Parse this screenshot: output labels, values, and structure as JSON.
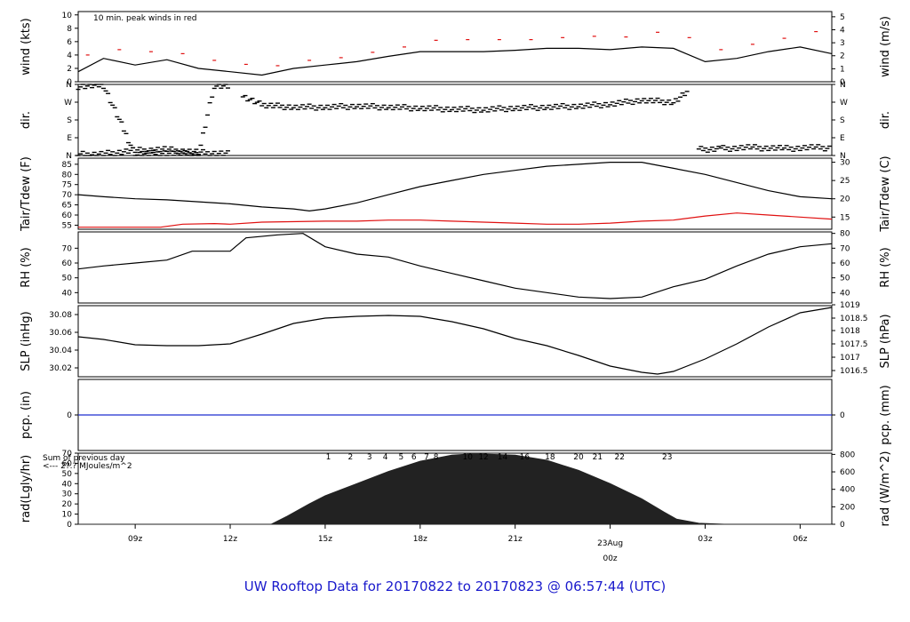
{
  "footer_title": "UW Rooftop Data for 20170822  to  20170823 @ 06:57:44  (UTC)",
  "colors": {
    "line": "#000000",
    "secondary": "#e01010",
    "precip": "#1f2fd0",
    "annotation": "#a020c0",
    "footer": "#1a1acc",
    "date": "#e01010"
  },
  "x_axis": {
    "ticks": [
      {
        "hour": 9,
        "label": "09z"
      },
      {
        "hour": 12,
        "label": "12z"
      },
      {
        "hour": 15,
        "label": "15z"
      },
      {
        "hour": 18,
        "label": "18z"
      },
      {
        "hour": 21,
        "label": "21z"
      },
      {
        "hour": 27,
        "label": "03z"
      },
      {
        "hour": 30,
        "label": "06z"
      }
    ],
    "date_marker": {
      "hour": 24,
      "date": "23Aug",
      "time": "00z"
    },
    "range_hours": [
      7.2,
      31
    ]
  },
  "chart_data": [
    {
      "id": "wind",
      "type": "line",
      "ylabel_left": "wind (kts)",
      "ylabel_right": "wind (m/s)",
      "annotation": "10 min. peak winds in red",
      "ylim": [
        0,
        10.5
      ],
      "yticks_left": [
        0,
        2,
        4,
        6,
        8,
        10
      ],
      "yticks_right": [
        0,
        1,
        2,
        3,
        4,
        5
      ],
      "series": [
        {
          "role": "speed",
          "x": [
            7.2,
            8,
            9,
            10,
            11,
            12,
            13,
            14,
            15,
            16,
            17,
            18,
            19,
            20,
            21,
            22,
            23,
            24,
            25,
            26,
            27,
            28,
            29,
            30,
            31
          ],
          "y": [
            1.5,
            3.5,
            2.5,
            3.3,
            2.0,
            1.5,
            1.0,
            2.0,
            2.5,
            3.0,
            3.8,
            4.5,
            4.5,
            4.5,
            4.7,
            5.0,
            5.0,
            4.8,
            5.2,
            5.0,
            3.0,
            3.5,
            4.5,
            5.2,
            4.2
          ]
        },
        {
          "role": "peak",
          "x": [
            7.5,
            8.5,
            9.5,
            10.5,
            11.5,
            12.5,
            13.5,
            14.5,
            15.5,
            16.5,
            17.5,
            18.5,
            19.5,
            20.5,
            21.5,
            22.5,
            23.5,
            24.5,
            25.5,
            26.5,
            27.5,
            28.5,
            29.5,
            30.5
          ],
          "y": [
            4.0,
            4.8,
            4.5,
            4.2,
            3.2,
            2.6,
            2.4,
            3.2,
            3.6,
            4.4,
            5.2,
            6.2,
            6.3,
            6.3,
            6.3,
            6.6,
            6.8,
            6.7,
            7.4,
            6.6,
            4.8,
            5.6,
            6.5,
            7.5
          ]
        }
      ]
    },
    {
      "id": "dir",
      "type": "scatter",
      "ylabel_left": "dir.",
      "ylabel_right": "dir.",
      "ylim": [
        0,
        360
      ],
      "ytick_labels": [
        "N",
        "E",
        "S",
        "W",
        "N"
      ],
      "ytick_values": [
        0,
        90,
        180,
        270,
        360
      ],
      "segments": [
        {
          "x": [
            7.2,
            8,
            9,
            10,
            11,
            11.5,
            12.0
          ],
          "y": [
            350,
            355,
            5,
            15,
            5,
            355,
            350
          ]
        },
        {
          "x": [
            7.2,
            8,
            9,
            10,
            11,
            12.0
          ],
          "y": [
            5,
            8,
            25,
            30,
            15,
            8
          ]
        },
        {
          "x": [
            12.4,
            13,
            14,
            15,
            16,
            17,
            18,
            19,
            20,
            21,
            22,
            23,
            24,
            25,
            26,
            26.5
          ],
          "y": [
            300,
            255,
            245,
            245,
            250,
            245,
            240,
            235,
            232,
            240,
            245,
            250,
            260,
            280,
            270,
            330
          ]
        },
        {
          "x": [
            26.8,
            27.5,
            28.5,
            29.5,
            30.5,
            31
          ],
          "y": [
            30,
            35,
            40,
            35,
            40,
            38
          ]
        }
      ]
    },
    {
      "id": "temp",
      "type": "line",
      "ylabel_left": "Tair/Tdew (F)",
      "ylabel_right": "Tair/Tdew (C)",
      "ylim": [
        53,
        88
      ],
      "yticks_left": [
        55,
        60,
        65,
        70,
        75,
        80,
        85
      ],
      "yticks_right": [
        {
          "label": "15",
          "f": 59
        },
        {
          "label": "20",
          "f": 68
        },
        {
          "label": "25",
          "f": 77
        },
        {
          "label": "30",
          "f": 86
        }
      ],
      "series": [
        {
          "role": "tair",
          "x": [
            7.2,
            8,
            9,
            10,
            11,
            12,
            13,
            14,
            14.5,
            15,
            16,
            17,
            18,
            19,
            20,
            21,
            22,
            23,
            24,
            25,
            26,
            27,
            28,
            29,
            30,
            31
          ],
          "y": [
            70,
            69,
            68,
            67.5,
            66.5,
            65.5,
            64,
            63,
            62,
            63,
            66,
            70,
            74,
            77,
            80,
            82,
            84,
            85,
            86,
            86,
            83,
            80,
            76,
            72,
            69,
            68
          ]
        },
        {
          "role": "tdew",
          "x": [
            7.2,
            9,
            9.8,
            10.5,
            11.5,
            12,
            13,
            15,
            16,
            17,
            18,
            19,
            20,
            21,
            22,
            23,
            24,
            25,
            26,
            27,
            28,
            29,
            30,
            31
          ],
          "y": [
            54,
            54,
            54,
            55.5,
            55.8,
            55.5,
            56.5,
            57,
            57,
            57.5,
            57.5,
            57,
            56.5,
            56,
            55.5,
            55.5,
            56,
            57,
            57.5,
            59.5,
            61,
            60,
            59,
            58
          ]
        }
      ]
    },
    {
      "id": "rh",
      "type": "line",
      "ylabel_left": "RH (%)",
      "ylabel_right": "RH (%)",
      "ylim": [
        33,
        81
      ],
      "yticks_left": [
        40,
        50,
        60,
        70
      ],
      "yticks_right": [
        40,
        50,
        60,
        70,
        80
      ],
      "series": [
        {
          "role": "rh",
          "x": [
            7.2,
            8,
            9,
            10,
            10.8,
            11.5,
            12,
            12.5,
            13.5,
            14.3,
            15,
            16,
            17,
            18,
            19,
            20,
            21,
            22,
            23,
            24,
            25,
            26,
            27,
            28,
            29,
            30,
            31
          ],
          "y": [
            56,
            58,
            60,
            62,
            68,
            68,
            68,
            77,
            79,
            80,
            71,
            66,
            64,
            58,
            53,
            48,
            43,
            40,
            37,
            36,
            37,
            44,
            49,
            58,
            66,
            71,
            73
          ]
        }
      ]
    },
    {
      "id": "slp",
      "type": "line",
      "ylabel_left": "SLP (inHg)",
      "ylabel_right": "SLP (hPa)",
      "ylim": [
        30.01,
        30.09
      ],
      "yticks_left": [
        30.02,
        30.04,
        30.06,
        30.08
      ],
      "yticks_right": [
        {
          "label": "1016.5",
          "in": 30.017
        },
        {
          "label": "1017",
          "in": 30.032
        },
        {
          "label": "1017.5",
          "in": 30.047
        },
        {
          "label": "1018",
          "in": 30.062
        },
        {
          "label": "1018.5",
          "in": 30.076
        },
        {
          "label": "1019",
          "in": 30.091
        }
      ],
      "series": [
        {
          "role": "slp",
          "x": [
            7.2,
            8,
            9,
            10,
            11,
            12,
            13,
            14,
            15,
            16,
            17,
            18,
            19,
            20,
            21,
            22,
            23,
            24,
            25,
            25.5,
            26,
            27,
            28,
            29,
            30,
            31
          ],
          "y": [
            30.055,
            30.052,
            30.046,
            30.045,
            30.045,
            30.047,
            30.058,
            30.07,
            30.076,
            30.078,
            30.079,
            30.078,
            30.072,
            30.064,
            30.053,
            30.045,
            30.034,
            30.022,
            30.015,
            30.013,
            30.016,
            30.03,
            30.047,
            30.066,
            30.082,
            30.088
          ]
        }
      ]
    },
    {
      "id": "pcp",
      "type": "line",
      "ylabel_left": "pcp. (in)",
      "ylabel_right": "pcp. (mm)",
      "ylim": [
        -1,
        1
      ],
      "yticks_left": [
        0
      ],
      "yticks_right": [
        0
      ],
      "series": [
        {
          "role": "pcp",
          "x": [
            7.2,
            31
          ],
          "y": [
            0,
            0
          ]
        }
      ]
    },
    {
      "id": "rad",
      "type": "area",
      "ylabel_left": "rad(Lgly/hr)",
      "ylabel_right": "rad (W/m^2)",
      "annotation_lines": [
        "Sum of previous day",
        "<--- 2?.? MJoules/m^2"
      ],
      "hour_labels": [
        {
          "hour": 15.1,
          "label": "1"
        },
        {
          "hour": 15.8,
          "label": "2"
        },
        {
          "hour": 16.4,
          "label": "3"
        },
        {
          "hour": 16.9,
          "label": "4"
        },
        {
          "hour": 17.4,
          "label": "5"
        },
        {
          "hour": 17.8,
          "label": "6"
        },
        {
          "hour": 18.2,
          "label": "7"
        },
        {
          "hour": 18.5,
          "label": "8"
        },
        {
          "hour": 19.5,
          "label": "10"
        },
        {
          "hour": 20.0,
          "label": "12"
        },
        {
          "hour": 20.6,
          "label": "14"
        },
        {
          "hour": 21.3,
          "label": "16"
        },
        {
          "hour": 22.1,
          "label": "18"
        },
        {
          "hour": 23.0,
          "label": "20"
        },
        {
          "hour": 23.6,
          "label": "21"
        },
        {
          "hour": 24.3,
          "label": "22"
        },
        {
          "hour": 25.8,
          "label": "23"
        }
      ],
      "ylim": [
        0,
        70
      ],
      "yticks_left": [
        0,
        10,
        20,
        30,
        40,
        50,
        60,
        70
      ],
      "yticks_right": [
        {
          "label": "0",
          "w": 0
        },
        {
          "label": "200",
          "w": 200
        },
        {
          "label": "400",
          "w": 400
        },
        {
          "label": "600",
          "w": 600
        },
        {
          "label": "800",
          "w": 800
        }
      ],
      "series": [
        {
          "role": "rad",
          "x": [
            7.2,
            13.3,
            13.8,
            14.5,
            15,
            16,
            17,
            18,
            19,
            19.5,
            20,
            21,
            22,
            23,
            24,
            25,
            25.7,
            26.1,
            26.8,
            27.6,
            31
          ],
          "y": [
            0,
            0,
            8,
            20,
            28,
            40,
            52,
            62,
            68,
            69,
            69,
            68,
            63,
            53,
            40,
            25,
            12,
            5,
            1,
            0,
            0
          ]
        }
      ]
    }
  ]
}
